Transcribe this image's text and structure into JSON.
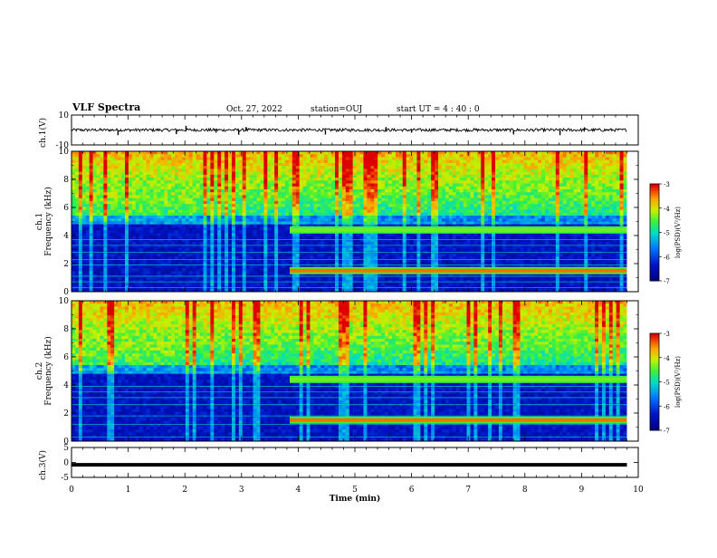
{
  "header": {
    "title": "VLF Spectra",
    "date": "Oct. 27, 2022",
    "station": "station=OUJ",
    "start_ut": "start UT =  4 : 40 : 0"
  },
  "chart_data": [
    {
      "type": "line",
      "panel": "ch1-waveform",
      "ylabel": "ch.1(V)",
      "ylim": [
        -10,
        10
      ],
      "yticks": [
        "10",
        "-10"
      ],
      "xlim": [
        0,
        10
      ],
      "series_color": "#000000",
      "baseline_v": 0,
      "noise_v": 1.0,
      "spikes": [
        {
          "t": 0.82,
          "v": -3.5
        },
        {
          "t": 1.85,
          "v": -2.8
        },
        {
          "t": 2.02,
          "v": 2.8
        },
        {
          "t": 2.55,
          "v": -1.8
        },
        {
          "t": 2.95,
          "v": -3.2
        },
        {
          "t": 3.08,
          "v": 2.0
        },
        {
          "t": 4.48,
          "v": -3.0
        },
        {
          "t": 5.55,
          "v": 2.0
        },
        {
          "t": 6.0,
          "v": -1.8
        },
        {
          "t": 7.8,
          "v": -3.0
        },
        {
          "t": 8.62,
          "v": -3.5
        },
        {
          "t": 9.05,
          "v": 1.8
        }
      ]
    },
    {
      "type": "heatmap",
      "panel": "ch1-spectrogram",
      "ylabel": "ch.1",
      "ylabel2": "Frequency (kHz)",
      "ylim": [
        0,
        10
      ],
      "yticks": [
        "0",
        "2",
        "4",
        "6",
        "8",
        "10"
      ],
      "xlim": [
        0,
        10
      ],
      "colorbar": {
        "label": "log(PSD)(V²/Hz)",
        "range": [
          -7,
          -3
        ],
        "ticks": [
          "-3",
          "-4",
          "-5",
          "-6",
          "-7"
        ]
      },
      "band_onset_min": 3.85,
      "bands_khz": [
        {
          "f": 1.5,
          "from": 3.85
        },
        {
          "f": 4.4,
          "from": 3.85
        }
      ],
      "lines_khz": [
        0.3,
        0.7,
        1.1,
        1.9,
        2.3,
        2.8,
        3.3,
        3.7,
        4.9
      ]
    },
    {
      "type": "heatmap",
      "panel": "ch2-spectrogram",
      "ylabel": "ch.2",
      "ylabel2": "Frequency (kHz)",
      "ylim": [
        0,
        10
      ],
      "yticks": [
        "0",
        "2",
        "4",
        "6",
        "8",
        "10"
      ],
      "xlim": [
        0,
        10
      ],
      "colorbar": {
        "label": "log(PSD)(V²/Hz)",
        "range": [
          -7,
          -3
        ],
        "ticks": [
          "-3",
          "-4",
          "-5",
          "-6",
          "-7"
        ]
      },
      "band_onset_min": 3.85,
      "bands_khz": [
        {
          "f": 1.5,
          "from": 3.85
        },
        {
          "f": 4.4,
          "from": 3.85
        }
      ],
      "lines_khz": [
        0.3,
        1.2,
        1.8,
        2.6,
        3.1,
        3.5,
        3.9,
        4.9
      ]
    },
    {
      "type": "line",
      "panel": "ch3-waveform",
      "ylabel": "ch.3(V)",
      "ylim": [
        -5,
        5
      ],
      "yticks": [
        "5",
        "0",
        "-5"
      ],
      "xlim": [
        0,
        10
      ],
      "series_color": "#000000",
      "constant_v": -0.8
    }
  ],
  "x_axis": {
    "label": "Time (min)",
    "ticks": [
      "0",
      "1",
      "2",
      "3",
      "4",
      "5",
      "6",
      "7",
      "8",
      "9",
      "10"
    ],
    "range": [
      0,
      10
    ],
    "data_end_min": 9.8
  }
}
